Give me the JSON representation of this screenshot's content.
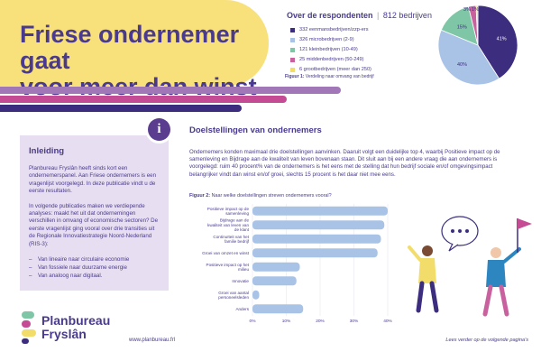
{
  "header": {
    "title_line1": "Friese ondernemer gaat",
    "title_line2": "voor meer dan winst"
  },
  "respondents": {
    "title": "Over de respondenten",
    "separator": "|",
    "count": "812 bedrijven",
    "legend": [
      {
        "label": "332 eenmansbedrijven/zzp-ers",
        "color": "#3d2d7e"
      },
      {
        "label": "326 microbedrijven (2-9)",
        "color": "#a9c3e6"
      },
      {
        "label": "121 kleinbedrijven (10-49)",
        "color": "#7fc6a6"
      },
      {
        "label": "25 middenbedrijven (50-249)",
        "color": "#c9619f"
      },
      {
        "label": "6 grootbedrijven (meer dan 250)",
        "color": "#f2dd6b"
      }
    ],
    "figure_label": "Figuur 1:",
    "figure_caption": "Verdeling naar omvang van bedrijf",
    "pie_labels": [
      "41%",
      "40%",
      "15%",
      "3%",
      "1%"
    ]
  },
  "intro": {
    "heading": "Inleiding",
    "p1": "Planbureau Fryslân heeft sinds kort een ondernemerspanel. Aan Friese ondernemers is een vragenlijst voorgelegd. In deze publicatie vindt u de eerste resultaten.",
    "p2": "In volgende publicaties maken we verdiepende analyses: maakt het uit dat ondernemingen verschillen in omvang of economische sectoren? De eerste vragenlijst ging vooral over drie transities uit de Regionale Innovatiestrategie Noord-Nederland (RIS-3):",
    "bullets": [
      "Van lineaire naar circulaire economie",
      "Van fossiele naar duurzame energie",
      "Van analoog naar digitaal."
    ],
    "info_glyph": "i"
  },
  "doelstellingen": {
    "heading": "Doelstellingen van ondernemers",
    "paragraph": "Ondernemers konden maximaal drie doelstellingen aanvinken. Daaruit volgt een duidelijke top 4, waarbij Positieve impact op de samenleving en Bijdrage aan de kwaliteit van leven bovenaan staan. Dit sluit aan bij een andere vraag die aan ondernemers is voorgelegd: ruim 40 procent% van de ondernemers is het eens met de stelling dat hun bedrijf sociale en/of omgevingsimpact belangrijker vindt dan winst en/of groei, slechts 15 procent is het daar niet mee eens.",
    "figure_label": "Figuur 2:",
    "figure_caption": "Naar welke doelstellingen streven ondernemers vooral?"
  },
  "chart_data": {
    "type": "bar",
    "orientation": "horizontal",
    "title": "Naar welke doelstellingen streven ondernemers vooral?",
    "categories": [
      "Positieve impact op de samenleving",
      "Bijdrage aan de kwaliteit van leven van de klant",
      "Continuïteit van het familie bedrijf",
      "Groei van omzet en winst",
      "Positieve impact op het milieu",
      "Innovatie",
      "Groei van aantal personeelsleden",
      "Anders"
    ],
    "values": [
      40,
      39,
      38,
      37,
      14,
      13,
      2,
      15
    ],
    "xlim": [
      0,
      40
    ],
    "xticks": [
      "0%",
      "10%",
      "20%",
      "30%",
      "40%"
    ],
    "color": "#a9c3e6"
  },
  "footer": {
    "logo_line1": "Planbureau",
    "logo_line2": "Fryslân",
    "url": "www.planbureau.frl",
    "next": "Lees verder op de volgende pagina's"
  }
}
